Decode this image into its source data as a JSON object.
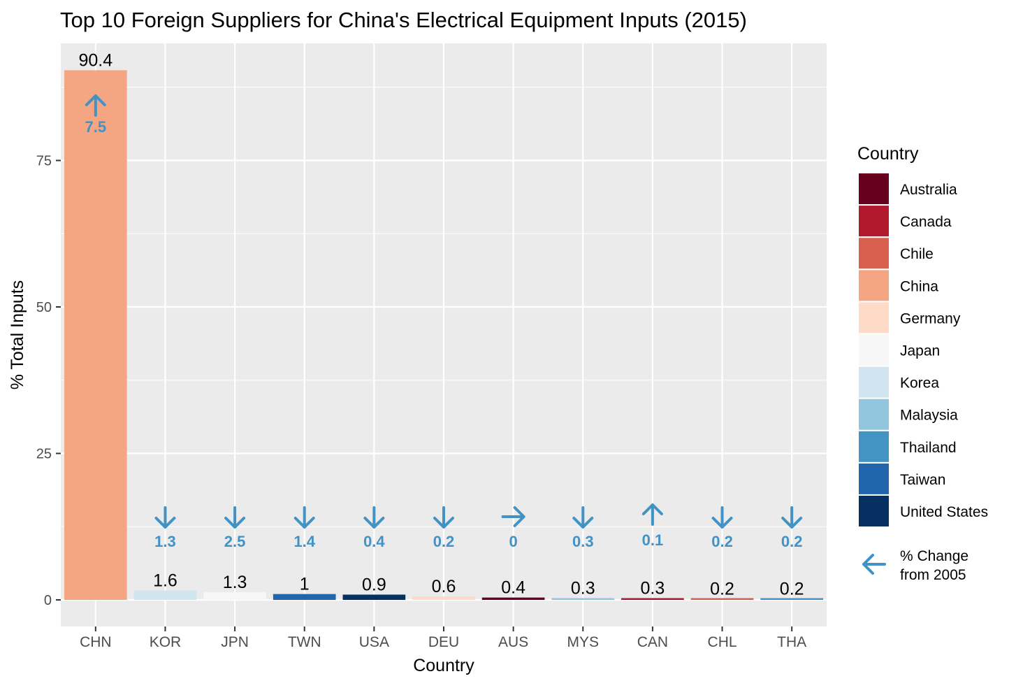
{
  "chart_data": {
    "type": "bar",
    "title": "Top 10 Foreign Suppliers for China's Electrical Equipment Inputs (2015)",
    "xlabel": "Country",
    "ylabel": "% Total Inputs",
    "ylim": [
      -7.5,
      92.5
    ],
    "yticks": [
      0,
      25,
      50,
      75
    ],
    "grid": true,
    "categories": [
      "CHN",
      "KOR",
      "JPN",
      "TWN",
      "USA",
      "DEU",
      "AUS",
      "MYS",
      "CAN",
      "CHL",
      "THA"
    ],
    "countries": [
      "China",
      "Korea",
      "Japan",
      "Taiwan",
      "United States",
      "Germany",
      "Australia",
      "Malaysia",
      "Canada",
      "Chile",
      "Thailand"
    ],
    "values": [
      90.4,
      1.6,
      1.3,
      1,
      0.9,
      0.6,
      0.4,
      0.3,
      0.3,
      0.2,
      0.2
    ],
    "value_labels": [
      "90.4",
      "1.6",
      "1.3",
      "1",
      "0.9",
      "0.6",
      "0.4",
      "0.3",
      "0.3",
      "0.2",
      "0.2"
    ],
    "change_from_2005": {
      "labels": [
        "7.5",
        "1.3",
        "2.5",
        "1.4",
        "0.4",
        "0.2",
        "0",
        "0.3",
        "0.1",
        "0.2",
        "0.2"
      ],
      "directions": [
        "up",
        "down",
        "down",
        "down",
        "down",
        "down",
        "right",
        "down",
        "up",
        "down",
        "down"
      ],
      "color": "#4292c6"
    },
    "legend": {
      "title": "Country",
      "placement": "right",
      "items": [
        {
          "name": "Australia",
          "color": "#67001f"
        },
        {
          "name": "Canada",
          "color": "#b2182b"
        },
        {
          "name": "Chile",
          "color": "#d6604d"
        },
        {
          "name": "China",
          "color": "#f4a582"
        },
        {
          "name": "Germany",
          "color": "#fddbc7"
        },
        {
          "name": "Japan",
          "color": "#f7f7f7"
        },
        {
          "name": "Korea",
          "color": "#d1e5f0"
        },
        {
          "name": "Malaysia",
          "color": "#92c5de"
        },
        {
          "name": "Thailand",
          "color": "#4393c3"
        },
        {
          "name": "Taiwan",
          "color": "#2166ac"
        },
        {
          "name": "United States",
          "color": "#053061"
        }
      ],
      "arrow_label": "% Change from 2005",
      "arrow_icon": "arrow-left-icon"
    },
    "colors": {
      "panel": "#ebebeb",
      "grid": "#ffffff",
      "text": "#000000",
      "tick_text": "#4d4d4d"
    }
  }
}
